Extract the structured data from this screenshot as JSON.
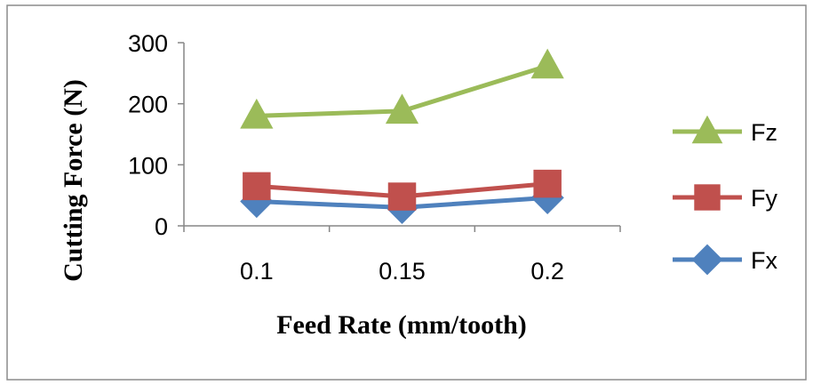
{
  "chart_data": {
    "type": "line",
    "x": [
      "0.1",
      "0.15",
      "0.2"
    ],
    "xlabel": "Feed Rate (mm/tooth)",
    "ylabel": "Cutting  Force (N)",
    "ylim": [
      0,
      300
    ],
    "yticks": [
      "0",
      "100",
      "200",
      "300"
    ],
    "grid": false,
    "legend_position": "right",
    "series": [
      {
        "name": "Fz",
        "values": [
          180,
          188,
          262
        ],
        "color": "#9bbb59",
        "marker": "triangle"
      },
      {
        "name": "Fy",
        "values": [
          65,
          48,
          69
        ],
        "color": "#c0504d",
        "marker": "square"
      },
      {
        "name": "Fx",
        "values": [
          40,
          30,
          46
        ],
        "color": "#4f81bd",
        "marker": "diamond"
      }
    ]
  }
}
